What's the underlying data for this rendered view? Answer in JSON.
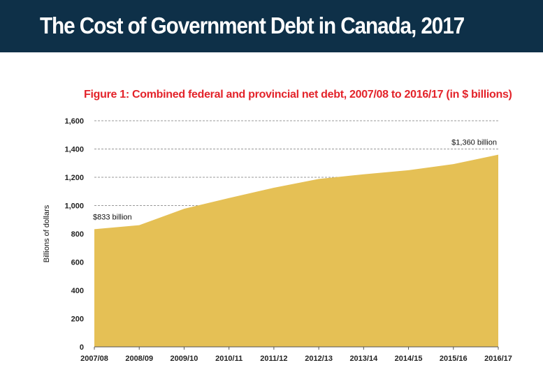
{
  "header": {
    "title": "The Cost of Government Debt in Canada, 2017"
  },
  "colors": {
    "header_bg": "#0e3048",
    "area": "#e5c055",
    "figure_title": "#e3232a"
  },
  "chart_data": {
    "type": "area",
    "title": "Figure 1: Combined federal and provincial net debt, 2007/08 to 2016/17 (in $ billions)",
    "xlabel": "",
    "ylabel": "Billions of dollars",
    "categories": [
      "2007/08",
      "2008/09",
      "2009/10",
      "2010/11",
      "2011/12",
      "2012/13",
      "2013/14",
      "2014/15",
      "2015/16",
      "2016/17"
    ],
    "values": [
      833,
      861,
      977,
      1053,
      1126,
      1188,
      1221,
      1250,
      1293,
      1360
    ],
    "ylim": [
      0,
      1600
    ],
    "yticks": [
      "0",
      "200",
      "400",
      "600",
      "800",
      "1,000",
      "1,200",
      "1,400",
      "1,600"
    ],
    "grid": true,
    "annotations": [
      {
        "label": "$833 billion",
        "index": 0
      },
      {
        "label": "$1,360 billion",
        "index": 9
      }
    ]
  }
}
